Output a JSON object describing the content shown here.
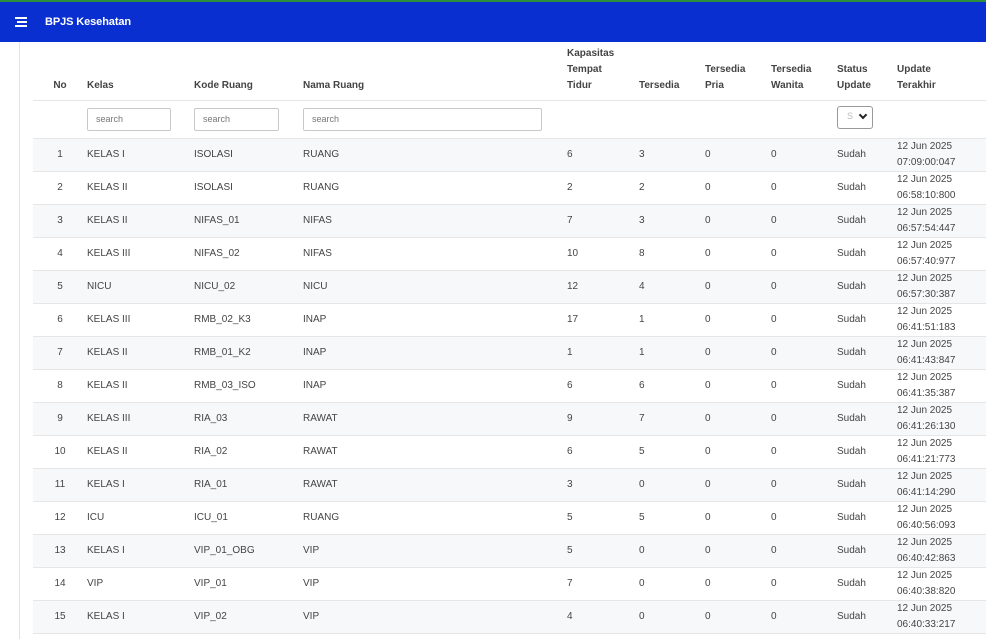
{
  "header": {
    "title": "BPJS Kesehatan",
    "accent": "#0a2fd1"
  },
  "table": {
    "columns": [
      "No",
      "Kelas",
      "Kode Ruang",
      "Nama Ruang",
      "Kapasitas Tempat Tidur",
      "Tersedia",
      "Tersedia Pria",
      "Tersedia Wanita",
      "Status Update",
      "Update Terakhir"
    ],
    "filters": {
      "kelas_placeholder": "search",
      "kode_placeholder": "search",
      "nama_placeholder": "search",
      "status_selected": "S"
    },
    "rows": [
      {
        "no": "1",
        "kelas": "KELAS I",
        "kode": "ISOLASI",
        "nama": "RUANG",
        "kapasitas": "6",
        "tersedia": "3",
        "pria": "0",
        "wanita": "0",
        "status": "Sudah",
        "tgl": "12 Jun 2025",
        "jam": "07:09:00:047"
      },
      {
        "no": "2",
        "kelas": "KELAS II",
        "kode": "ISOLASI",
        "nama": "RUANG",
        "kapasitas": "2",
        "tersedia": "2",
        "pria": "0",
        "wanita": "0",
        "status": "Sudah",
        "tgl": "12 Jun 2025",
        "jam": "06:58:10:800"
      },
      {
        "no": "3",
        "kelas": "KELAS II",
        "kode": "NIFAS_01",
        "nama": "NIFAS",
        "kapasitas": "7",
        "tersedia": "3",
        "pria": "0",
        "wanita": "0",
        "status": "Sudah",
        "tgl": "12 Jun 2025",
        "jam": "06:57:54:447"
      },
      {
        "no": "4",
        "kelas": "KELAS III",
        "kode": "NIFAS_02",
        "nama": "NIFAS",
        "kapasitas": "10",
        "tersedia": "8",
        "pria": "0",
        "wanita": "0",
        "status": "Sudah",
        "tgl": "12 Jun 2025",
        "jam": "06:57:40:977"
      },
      {
        "no": "5",
        "kelas": "NICU",
        "kode": "NICU_02",
        "nama": "NICU",
        "kapasitas": "12",
        "tersedia": "4",
        "pria": "0",
        "wanita": "0",
        "status": "Sudah",
        "tgl": "12 Jun 2025",
        "jam": "06:57:30:387"
      },
      {
        "no": "6",
        "kelas": "KELAS III",
        "kode": "RMB_02_K3",
        "nama": "INAP",
        "kapasitas": "17",
        "tersedia": "1",
        "pria": "0",
        "wanita": "0",
        "status": "Sudah",
        "tgl": "12 Jun 2025",
        "jam": "06:41:51:183"
      },
      {
        "no": "7",
        "kelas": "KELAS II",
        "kode": "RMB_01_K2",
        "nama": "INAP",
        "kapasitas": "1",
        "tersedia": "1",
        "pria": "0",
        "wanita": "0",
        "status": "Sudah",
        "tgl": "12 Jun 2025",
        "jam": "06:41:43:847"
      },
      {
        "no": "8",
        "kelas": "KELAS II",
        "kode": "RMB_03_ISO",
        "nama": "INAP",
        "kapasitas": "6",
        "tersedia": "6",
        "pria": "0",
        "wanita": "0",
        "status": "Sudah",
        "tgl": "12 Jun 2025",
        "jam": "06:41:35:387"
      },
      {
        "no": "9",
        "kelas": "KELAS III",
        "kode": "RIA_03",
        "nama": "RAWAT",
        "kapasitas": "9",
        "tersedia": "7",
        "pria": "0",
        "wanita": "0",
        "status": "Sudah",
        "tgl": "12 Jun 2025",
        "jam": "06:41:26:130"
      },
      {
        "no": "10",
        "kelas": "KELAS II",
        "kode": "RIA_02",
        "nama": "RAWAT",
        "kapasitas": "6",
        "tersedia": "5",
        "pria": "0",
        "wanita": "0",
        "status": "Sudah",
        "tgl": "12 Jun 2025",
        "jam": "06:41:21:773"
      },
      {
        "no": "11",
        "kelas": "KELAS I",
        "kode": "RIA_01",
        "nama": "RAWAT",
        "kapasitas": "3",
        "tersedia": "0",
        "pria": "0",
        "wanita": "0",
        "status": "Sudah",
        "tgl": "12 Jun 2025",
        "jam": "06:41:14:290"
      },
      {
        "no": "12",
        "kelas": "ICU",
        "kode": "ICU_01",
        "nama": "RUANG",
        "kapasitas": "5",
        "tersedia": "5",
        "pria": "0",
        "wanita": "0",
        "status": "Sudah",
        "tgl": "12 Jun 2025",
        "jam": "06:40:56:093"
      },
      {
        "no": "13",
        "kelas": "KELAS I",
        "kode": "VIP_01_OBG",
        "nama": "VIP",
        "kapasitas": "5",
        "tersedia": "0",
        "pria": "0",
        "wanita": "0",
        "status": "Sudah",
        "tgl": "12 Jun 2025",
        "jam": "06:40:42:863"
      },
      {
        "no": "14",
        "kelas": "VIP",
        "kode": "VIP_01",
        "nama": "VIP",
        "kapasitas": "7",
        "tersedia": "0",
        "pria": "0",
        "wanita": "0",
        "status": "Sudah",
        "tgl": "12 Jun 2025",
        "jam": "06:40:38:820"
      },
      {
        "no": "15",
        "kelas": "KELAS I",
        "kode": "VIP_02",
        "nama": "VIP",
        "kapasitas": "4",
        "tersedia": "0",
        "pria": "0",
        "wanita": "0",
        "status": "Sudah",
        "tgl": "12 Jun 2025",
        "jam": "06:40:33:217"
      }
    ]
  }
}
